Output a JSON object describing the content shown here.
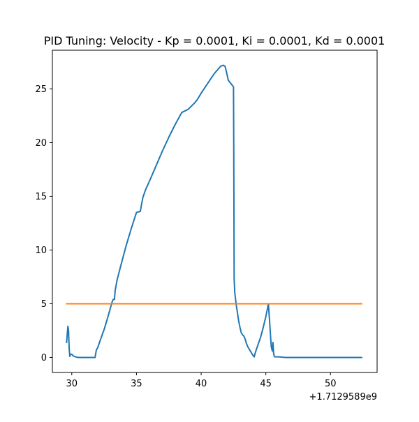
{
  "chart_data": {
    "type": "line",
    "title": "PID Tuning: Velocity - Kp = 0.0001, Ki = 0.0001, Kd = 0.0001",
    "xlabel": "",
    "ylabel": "",
    "x_offset_label": "+1.7129589e9",
    "xlim": [
      28.5,
      53.6
    ],
    "ylim": [
      -1.4,
      28.6
    ],
    "xticks": [
      30,
      35,
      40,
      45,
      50
    ],
    "yticks": [
      0,
      5,
      10,
      15,
      20,
      25
    ],
    "grid": false,
    "legend": "none",
    "series": [
      {
        "color": "#1f77b4",
        "x": [
          29.6,
          29.7,
          29.75,
          29.8,
          29.85,
          29.9,
          30.0,
          30.1,
          30.3,
          30.5,
          31.0,
          31.5,
          31.8,
          31.9,
          32.0,
          32.2,
          32.5,
          32.8,
          33.1,
          33.2,
          33.3,
          33.35,
          33.5,
          33.8,
          34.2,
          34.6,
          35.0,
          35.3,
          35.4,
          35.5,
          35.7,
          36.0,
          36.5,
          37.0,
          37.5,
          38.0,
          38.5,
          39.0,
          39.5,
          39.7,
          39.8,
          39.9,
          40.0,
          40.5,
          41.0,
          41.5,
          41.7,
          41.85,
          41.95,
          42.1,
          42.3,
          42.5,
          42.52,
          42.55,
          42.6,
          42.7,
          42.8,
          42.9,
          43.0,
          43.1,
          43.2,
          43.3,
          43.4,
          43.5,
          43.6,
          43.7,
          43.8,
          43.9,
          44.0,
          44.1,
          44.2,
          44.4,
          44.6,
          44.8,
          45.0,
          45.2,
          45.38,
          45.42,
          45.5,
          45.55,
          45.6,
          45.65,
          45.7,
          45.8,
          46.0,
          46.5,
          47.0,
          48.0,
          50.0,
          52.4
        ],
        "values": [
          1.4,
          2.9,
          2.5,
          0.8,
          0.1,
          0.3,
          0.3,
          0.15,
          0.05,
          0.0,
          0.0,
          0.0,
          0.0,
          0.7,
          0.9,
          1.6,
          2.6,
          3.8,
          5.1,
          5.4,
          5.4,
          6.2,
          7.2,
          8.6,
          10.4,
          12.0,
          13.5,
          13.6,
          14.3,
          14.9,
          15.6,
          16.4,
          17.8,
          19.2,
          20.5,
          21.7,
          22.8,
          23.1,
          23.7,
          24.0,
          24.2,
          24.4,
          24.6,
          25.5,
          26.4,
          27.1,
          27.2,
          27.1,
          26.6,
          25.8,
          25.5,
          25.2,
          20.0,
          7.4,
          6.0,
          5.0,
          4.2,
          3.4,
          2.8,
          2.3,
          2.1,
          2.0,
          1.7,
          1.3,
          1.0,
          0.8,
          0.6,
          0.4,
          0.2,
          0.05,
          0.5,
          1.2,
          1.9,
          2.8,
          3.8,
          5.0,
          1.7,
          1.0,
          0.6,
          1.4,
          0.4,
          0.1,
          0.05,
          0.05,
          0.05,
          0.0,
          0.0,
          0.0,
          0.0,
          0.0
        ]
      },
      {
        "color": "#ff7f0e",
        "x": [
          29.6,
          52.4
        ],
        "values": [
          5.0,
          5.0
        ]
      }
    ]
  }
}
